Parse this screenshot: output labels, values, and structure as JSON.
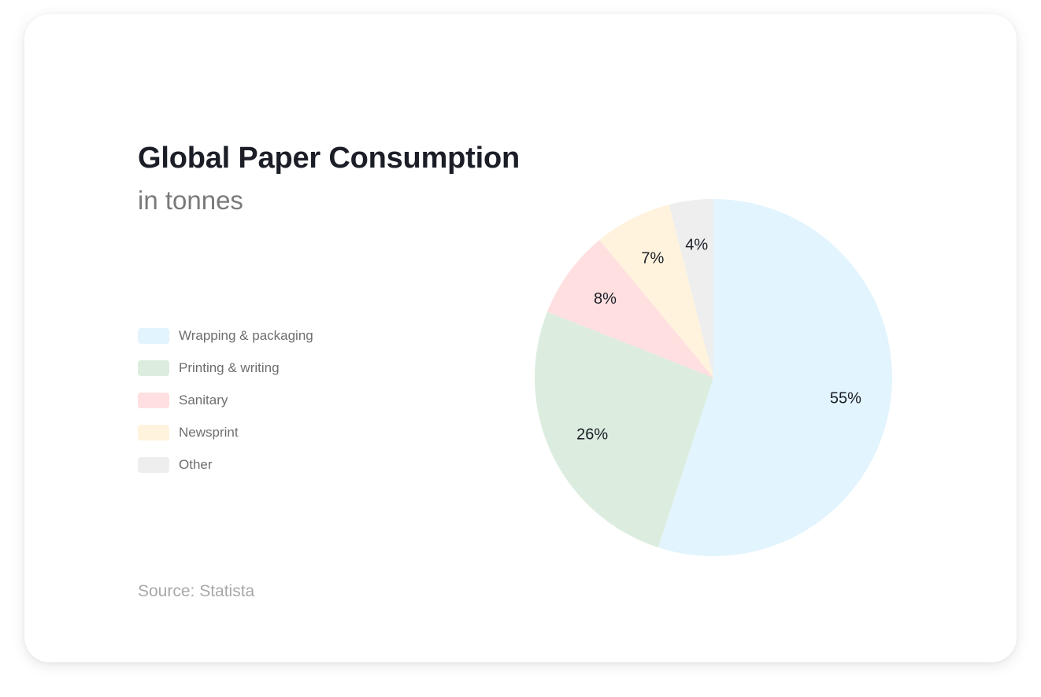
{
  "chart_data": {
    "type": "pie",
    "title": "Global Paper Consumption",
    "subtitle": "in tonnes",
    "source": "Source: Statista",
    "legend_position": "left",
    "slices": [
      {
        "label": "Wrapping & packaging",
        "value": 55,
        "value_label": "55%",
        "color": "#e2f4fd"
      },
      {
        "label": "Printing & writing",
        "value": 26,
        "value_label": "26%",
        "color": "#dceddf"
      },
      {
        "label": "Sanitary",
        "value": 8,
        "value_label": "8%",
        "color": "#ffdfe0"
      },
      {
        "label": "Newsprint",
        "value": 7,
        "value_label": "7%",
        "color": "#fff3dd"
      },
      {
        "label": "Other",
        "value": 4,
        "value_label": "4%",
        "color": "#eeeeee"
      }
    ]
  }
}
